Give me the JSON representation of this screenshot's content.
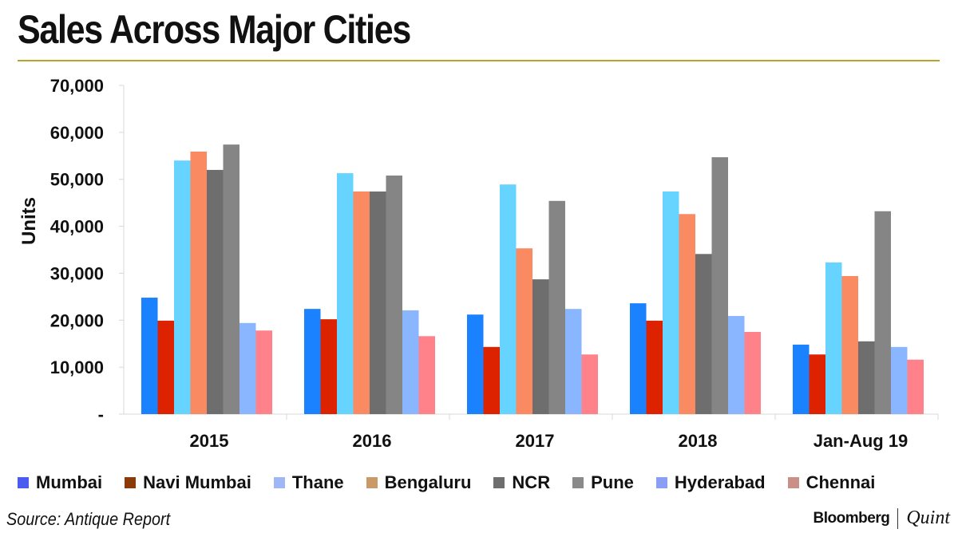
{
  "header": {
    "title": "Sales Across Major Cities"
  },
  "footer": {
    "source": "Source: Antique Report",
    "brand_primary": "Bloomberg",
    "brand_secondary": "Quint"
  },
  "chart_data": {
    "type": "bar",
    "title": "Sales Across Major Cities",
    "xlabel": "",
    "ylabel": "Units",
    "ylim": [
      0,
      70000
    ],
    "yticks": [
      0,
      10000,
      20000,
      30000,
      40000,
      50000,
      60000,
      70000
    ],
    "ytick_labels": [
      "-",
      "10,000",
      "20,000",
      "30,000",
      "40,000",
      "50,000",
      "60,000",
      "70,000"
    ],
    "grid": false,
    "legend_position": "bottom",
    "categories": [
      "2015",
      "2016",
      "2017",
      "2018",
      "Jan-Aug 19"
    ],
    "series": [
      {
        "name": "Mumbai",
        "color": "#1a82ff",
        "legend_color": "#4a5cf0",
        "values": [
          24800,
          22400,
          21200,
          23600,
          14800
        ]
      },
      {
        "name": "Navi Mumbai",
        "color": "#dd2200",
        "legend_color": "#8b3b0a",
        "values": [
          19900,
          20200,
          14300,
          19900,
          12700
        ]
      },
      {
        "name": "Thane",
        "color": "#66d4ff",
        "legend_color": "#9fb8f5",
        "values": [
          54000,
          51300,
          48900,
          47400,
          32300
        ]
      },
      {
        "name": "Bengaluru",
        "color": "#fa8a62",
        "legend_color": "#c99a68",
        "values": [
          55900,
          47400,
          35300,
          42600,
          29400
        ]
      },
      {
        "name": "NCR",
        "color": "#6e6e6e",
        "legend_color": "#6e6e6e",
        "values": [
          52000,
          47400,
          28700,
          34100,
          15500
        ]
      },
      {
        "name": "Pune",
        "color": "#858585",
        "legend_color": "#8a8a8a",
        "values": [
          57400,
          50800,
          45400,
          54700,
          43200
        ]
      },
      {
        "name": "Hyderabad",
        "color": "#8ab6ff",
        "legend_color": "#8a9ef5",
        "values": [
          19400,
          22100,
          22400,
          20900,
          14300
        ]
      },
      {
        "name": "Chennai",
        "color": "#ff828a",
        "legend_color": "#c99088",
        "values": [
          17800,
          16600,
          12700,
          17500,
          11600
        ]
      }
    ]
  }
}
